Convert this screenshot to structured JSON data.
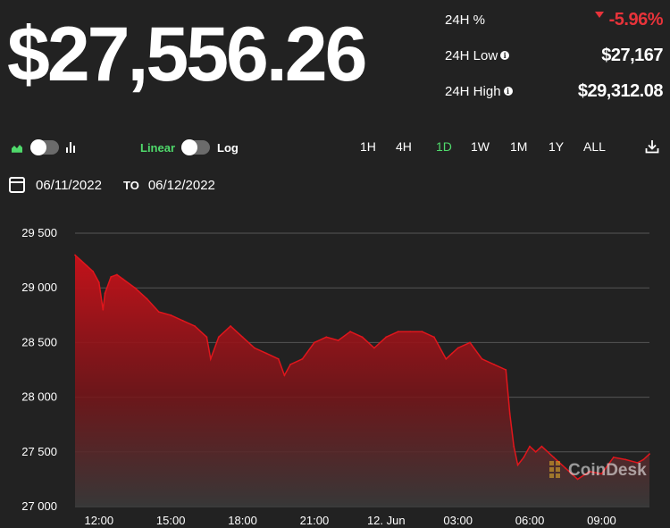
{
  "price": "$27,556.26",
  "stats": [
    {
      "label": "24H %",
      "value": "-5.96%",
      "info": false
    },
    {
      "label": "24H Low",
      "value": "$27,167",
      "info": true
    },
    {
      "label": "24H High",
      "value": "$29,312.08",
      "info": true
    }
  ],
  "controls": {
    "scale_linear": "Linear",
    "scale_log": "Log",
    "ranges": [
      "1H",
      "4H",
      "1D",
      "1W",
      "1M",
      "1Y",
      "ALL"
    ],
    "active_range": "1D"
  },
  "date_range": {
    "from": "06/11/2022",
    "to_label": "TO",
    "to": "06/12/2022"
  },
  "watermark": "CoinDesk",
  "colors": {
    "positive": "#4fd96b",
    "negative": "#e8333a",
    "line": "#e0161c",
    "background": "#222222"
  },
  "chart_data": {
    "type": "area",
    "title": "",
    "xlabel": "",
    "ylabel": "",
    "ylim": [
      27000,
      29500
    ],
    "yticks": [
      27000,
      27500,
      28000,
      28500,
      29000,
      29500
    ],
    "ytick_labels": [
      "27 000",
      "27 500",
      "28 000",
      "28 500",
      "29 000",
      "29 500"
    ],
    "xlim": [
      "06/11/2022 11:00",
      "06/12/2022 11:00"
    ],
    "xticks": [
      "06/11/2022 12:00",
      "06/11/2022 15:00",
      "06/11/2022 18:00",
      "06/11/2022 21:00",
      "06/12/2022 00:00",
      "06/12/2022 03:00",
      "06/12/2022 06:00",
      "06/12/2022 09:00"
    ],
    "xtick_labels": [
      "12:00",
      "15:00",
      "18:00",
      "21:00",
      "12. Jun",
      "03:00",
      "06:00",
      "09:00"
    ],
    "grid": true,
    "legend": "none",
    "series": [
      {
        "x": [
          "06/11/2022 11:00",
          "06/11/2022 11:15",
          "06/11/2022 11:30",
          "06/11/2022 11:45",
          "06/11/2022 12:00",
          "06/11/2022 12:10",
          "06/11/2022 12:15",
          "06/11/2022 12:30",
          "06/11/2022 12:45",
          "06/11/2022 13:00",
          "06/11/2022 13:30",
          "06/11/2022 14:00",
          "06/11/2022 14:30",
          "06/11/2022 15:00",
          "06/11/2022 15:30",
          "06/11/2022 16:00",
          "06/11/2022 16:30",
          "06/11/2022 16:40",
          "06/11/2022 17:00",
          "06/11/2022 17:30",
          "06/11/2022 18:00",
          "06/11/2022 18:30",
          "06/11/2022 19:00",
          "06/11/2022 19:30",
          "06/11/2022 19:45",
          "06/11/2022 20:00",
          "06/11/2022 20:30",
          "06/11/2022 21:00",
          "06/11/2022 21:30",
          "06/11/2022 22:00",
          "06/11/2022 22:30",
          "06/11/2022 23:00",
          "06/11/2022 23:30",
          "06/12/2022 00:00",
          "06/12/2022 00:30",
          "06/12/2022 01:00",
          "06/12/2022 01:30",
          "06/12/2022 02:00",
          "06/12/2022 02:30",
          "06/12/2022 02:45",
          "06/12/2022 03:00",
          "06/12/2022 03:30",
          "06/12/2022 04:00",
          "06/12/2022 04:30",
          "06/12/2022 05:00",
          "06/12/2022 05:10",
          "06/12/2022 05:20",
          "06/12/2022 05:30",
          "06/12/2022 05:45",
          "06/12/2022 06:00",
          "06/12/2022 06:15",
          "06/12/2022 06:30",
          "06/12/2022 07:00",
          "06/12/2022 07:30",
          "06/12/2022 08:00",
          "06/12/2022 08:30",
          "06/12/2022 09:00",
          "06/12/2022 09:30",
          "06/12/2022 10:00",
          "06/12/2022 10:30",
          "06/12/2022 10:45",
          "06/12/2022 11:00"
        ],
        "y": [
          29300,
          29250,
          29200,
          29150,
          29050,
          28800,
          28950,
          29100,
          29120,
          29080,
          29000,
          28900,
          28780,
          28750,
          28700,
          28650,
          28550,
          28350,
          28550,
          28650,
          28550,
          28450,
          28400,
          28350,
          28200,
          28300,
          28350,
          28500,
          28550,
          28520,
          28600,
          28550,
          28450,
          28550,
          28600,
          28600,
          28600,
          28550,
          28350,
          28400,
          28450,
          28500,
          28350,
          28300,
          28250,
          27850,
          27550,
          27380,
          27450,
          27550,
          27500,
          27550,
          27450,
          27350,
          27250,
          27320,
          27300,
          27450,
          27430,
          27400,
          27430,
          27480
        ]
      }
    ]
  }
}
